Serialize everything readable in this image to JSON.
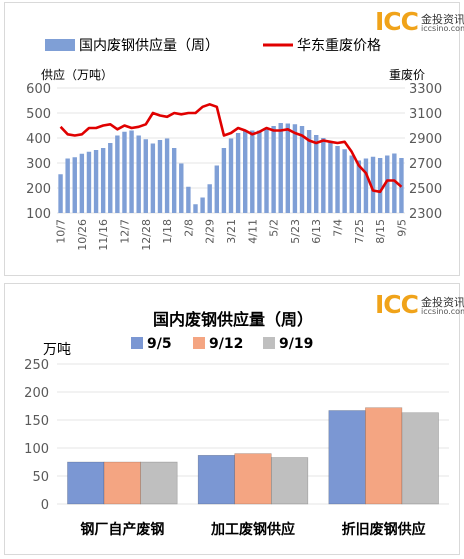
{
  "logo": {
    "mark": "ICC",
    "cn": "金投资讯",
    "url": "iccsino.com"
  },
  "colors": {
    "bar_top": "#7f9fd6",
    "line_top": "#e00000",
    "bar_9_5": "#7b97d3",
    "bar_9_12": "#f4a582",
    "bar_9_19": "#bfbfbf",
    "axis_text": "#595959",
    "grid": "#e6e6e6"
  },
  "chart_data": [
    {
      "type": "bar+line",
      "legend": {
        "placement": "top",
        "items": [
          {
            "label": "国内废钢供应量（周）",
            "kind": "bar"
          },
          {
            "label": "华东重废价格",
            "kind": "line"
          }
        ]
      },
      "ylabel_left": "供应（万吨）",
      "ylabel_right": "重废价",
      "ylim_left": [
        100,
        600
      ],
      "yticks_left": [
        "600",
        "500",
        "400",
        "300",
        "200",
        "100"
      ],
      "ylim_right": [
        2300,
        3300
      ],
      "yticks_right": [
        "3300",
        "3100",
        "2900",
        "2700",
        "2500",
        "2300"
      ],
      "x_ticks": [
        "10/7",
        "10/26",
        "11/16",
        "12/7",
        "12/28",
        "1/18",
        "2/8",
        "2/29",
        "3/21",
        "4/11",
        "5/2",
        "5/23",
        "6/13",
        "7/4",
        "7/25",
        "8/15",
        "9/5"
      ],
      "x_tick_positions": [
        0,
        3,
        6,
        9,
        12,
        15,
        18,
        21,
        24,
        27,
        30,
        33,
        36,
        39,
        42,
        45,
        48
      ],
      "bars": [
        255,
        318,
        323,
        337,
        345,
        352,
        360,
        380,
        410,
        425,
        430,
        410,
        395,
        378,
        392,
        398,
        360,
        298,
        205,
        135,
        162,
        215,
        290,
        360,
        398,
        420,
        428,
        430,
        430,
        438,
        448,
        460,
        458,
        455,
        448,
        432,
        412,
        400,
        382,
        368,
        355,
        330,
        310,
        318,
        325,
        320,
        330,
        338,
        320
      ],
      "line": [
        2990,
        2930,
        2920,
        2930,
        2980,
        2980,
        3000,
        3010,
        2970,
        3000,
        2980,
        2990,
        3010,
        3100,
        3080,
        3070,
        3100,
        3090,
        3100,
        3100,
        3150,
        3170,
        3150,
        2920,
        2940,
        2980,
        2960,
        2930,
        2950,
        2980,
        2960,
        2960,
        2970,
        2940,
        2920,
        2880,
        2860,
        2880,
        2870,
        2860,
        2870,
        2790,
        2680,
        2620,
        2480,
        2470,
        2560,
        2560,
        2510
      ]
    },
    {
      "type": "bar",
      "title": "国内废钢供应量（周）",
      "unit_label": "万吨",
      "legend": {
        "placement": "top"
      },
      "ylim": [
        0,
        250
      ],
      "yticks": [
        "250",
        "200",
        "150",
        "100",
        "50",
        "0"
      ],
      "categories": [
        "钢厂自产废钢",
        "加工废钢供应",
        "折旧废钢供应"
      ],
      "series": [
        {
          "name": "9/5",
          "values": [
            75,
            87,
            167
          ]
        },
        {
          "name": "9/12",
          "values": [
            75,
            90,
            172
          ]
        },
        {
          "name": "9/19",
          "values": [
            75,
            83,
            163
          ]
        }
      ]
    }
  ]
}
